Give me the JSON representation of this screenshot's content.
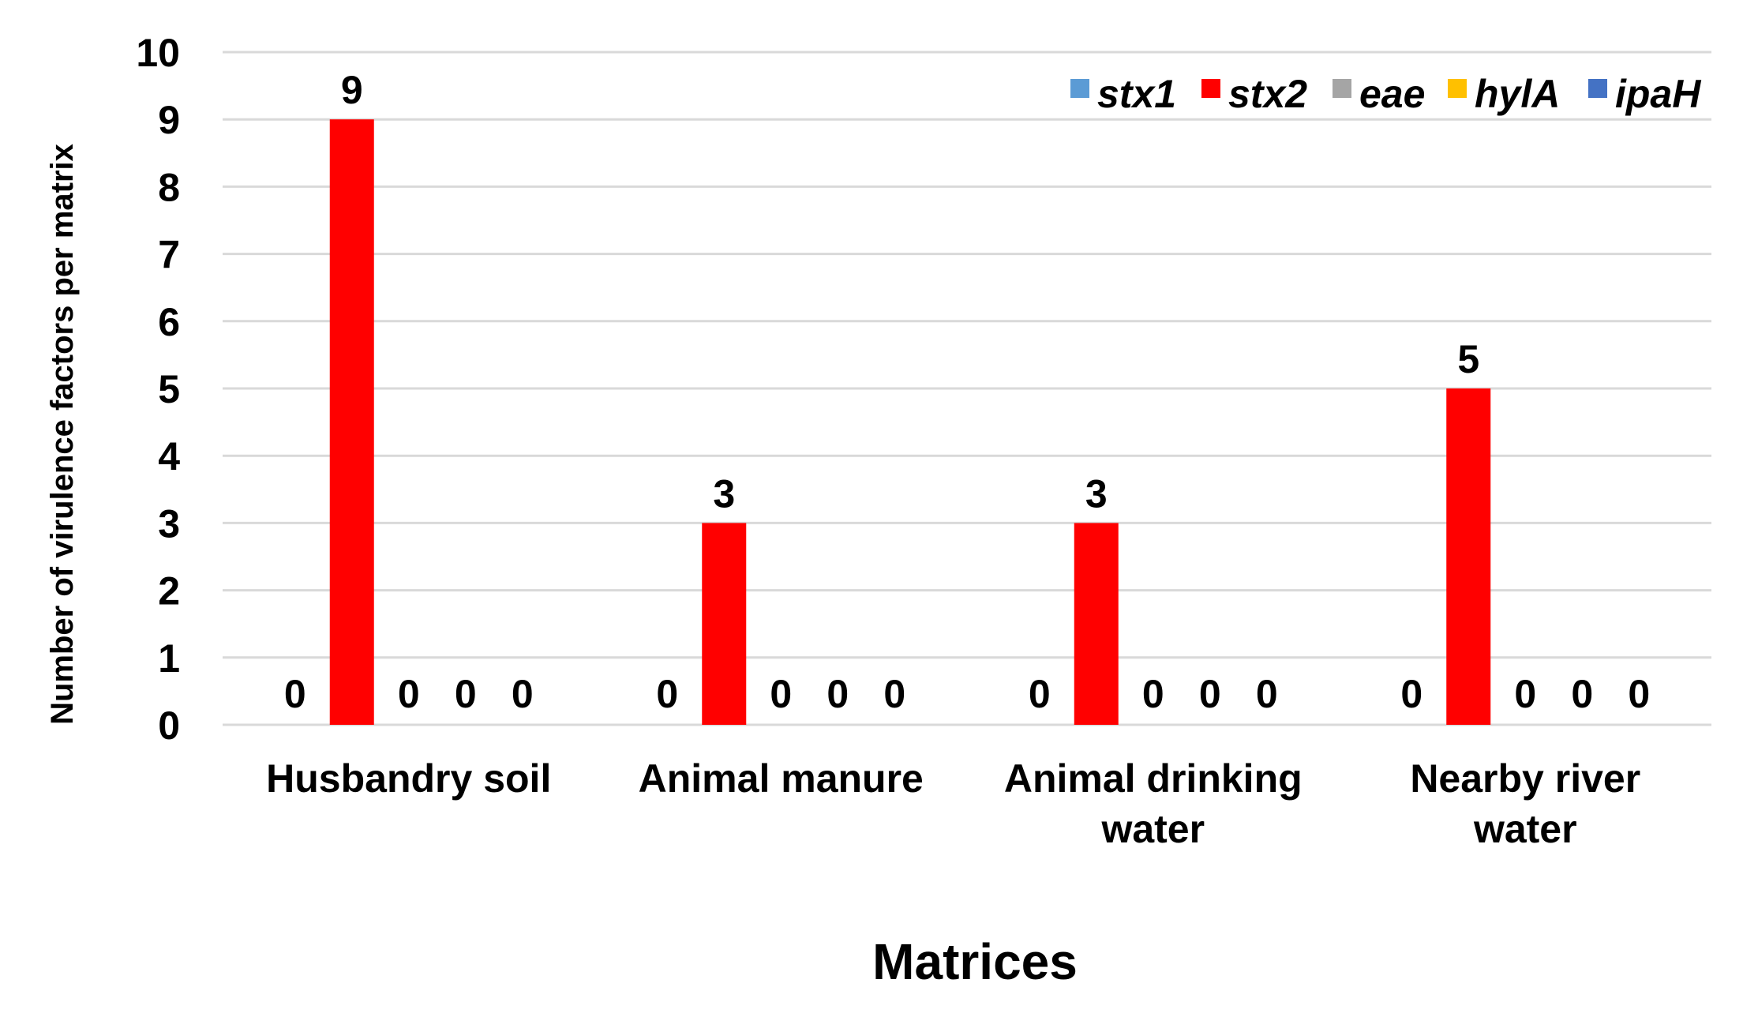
{
  "chart_data": {
    "type": "bar",
    "categories": [
      [
        "Husbandry soil"
      ],
      [
        "Animal manure"
      ],
      [
        "Animal drinking",
        "water"
      ],
      [
        "Nearby river",
        "water"
      ]
    ],
    "series": [
      {
        "name": "stx1",
        "color": "#5b9bd5",
        "values": [
          0,
          0,
          0,
          0
        ]
      },
      {
        "name": "stx2",
        "color": "#ff0000",
        "values": [
          9,
          3,
          3,
          5
        ]
      },
      {
        "name": "eae",
        "color": "#a5a5a5",
        "values": [
          0,
          0,
          0,
          0
        ]
      },
      {
        "name": "hylA",
        "color": "#ffc000",
        "values": [
          0,
          0,
          0,
          0
        ]
      },
      {
        "name": "ipaH",
        "color": "#4472c4",
        "values": [
          0,
          0,
          0,
          0
        ]
      }
    ],
    "xlabel": "Matrices",
    "ylabel": "Number of virulence factors per matrix",
    "ylim": [
      0,
      10
    ],
    "yticks": [
      0,
      1,
      2,
      3,
      4,
      5,
      6,
      7,
      8,
      9,
      10
    ],
    "grid": true,
    "legend_position": "top-right",
    "data_labels": true
  }
}
